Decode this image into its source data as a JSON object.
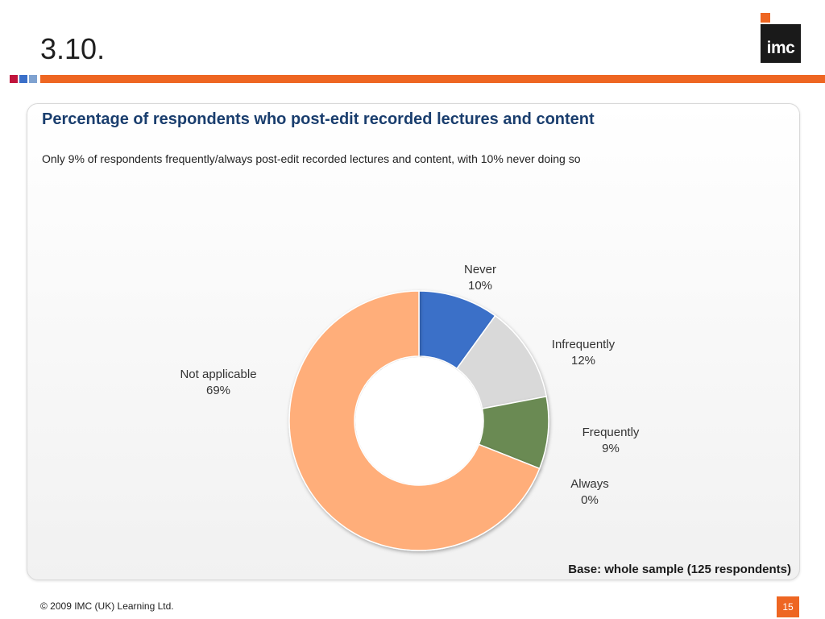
{
  "slide": {
    "title": "3.10.",
    "logo_text": "imc",
    "accent_colors": [
      "#c0143c",
      "#3a6fc8",
      "#7fa2d0",
      "#6a9a4a"
    ],
    "accent_line_color": "#ee6622"
  },
  "panel": {
    "heading": "Percentage of respondents who post-edit recorded lectures and content",
    "subtitle": "Only 9% of respondents frequently/always post-edit recorded lectures and content, with 10% never doing so",
    "base_note": "Base: whole sample (125 respondents)"
  },
  "footer": {
    "copyright": "© 2009 IMC (UK) Learning Ltd.",
    "page_number": "15"
  },
  "chart_data": {
    "type": "pie",
    "donut": true,
    "title": "",
    "categories": [
      "Never",
      "Infrequently",
      "Frequently",
      "Always",
      "Not applicable"
    ],
    "values": [
      10,
      12,
      9,
      0,
      69
    ],
    "value_labels": [
      "10%",
      "12%",
      "9%",
      "0%",
      "69%"
    ],
    "unit": "%",
    "colors": [
      "#3a6fc8",
      "#d9d9d9",
      "#6a8a52",
      "#c0504d",
      "#ffae7a"
    ],
    "legend": "none",
    "data_labels": "outside"
  }
}
